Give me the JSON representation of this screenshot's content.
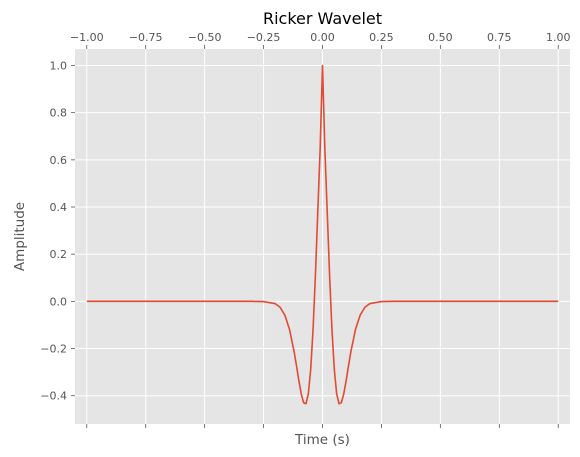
{
  "chart_data": {
    "type": "line",
    "title": "Ricker Wavelet",
    "xlabel": "Time (s)",
    "ylabel": "Amplitude",
    "xlim": [
      -1.05,
      1.05
    ],
    "ylim": [
      -0.52,
      1.07
    ],
    "x_ticks": [
      -1.0,
      -0.75,
      -0.5,
      -0.25,
      0.0,
      0.25,
      0.5,
      0.75,
      1.0
    ],
    "x_tick_labels": [
      "−1.00",
      "−0.75",
      "−0.50",
      "−0.25",
      "0.00",
      "0.25",
      "0.50",
      "0.75",
      "1.00"
    ],
    "x_tick_label_position": "top",
    "y_ticks": [
      -0.4,
      -0.2,
      0.0,
      0.2,
      0.4,
      0.6,
      0.8,
      1.0
    ],
    "y_tick_labels": [
      "−0.4",
      "−0.2",
      "0.0",
      "0.2",
      "0.4",
      "0.6",
      "0.8",
      "1.0"
    ],
    "grid": true,
    "style": "ggplot",
    "series": [
      {
        "color": "#E24A33",
        "x": [
          -1.0,
          -0.75,
          -0.5,
          -0.3,
          -0.25,
          -0.2,
          -0.18,
          -0.16,
          -0.14,
          -0.12,
          -0.11,
          -0.1,
          -0.09,
          -0.08,
          -0.07,
          -0.06,
          -0.05,
          -0.04,
          -0.03,
          -0.02,
          -0.01,
          0.0,
          0.01,
          0.02,
          0.03,
          0.04,
          0.05,
          0.06,
          0.07,
          0.08,
          0.09,
          0.1,
          0.11,
          0.12,
          0.14,
          0.16,
          0.18,
          0.2,
          0.25,
          0.3,
          0.5,
          0.75,
          1.0
        ],
        "y": [
          0.0,
          0.0,
          0.0,
          -0.0,
          -0.001,
          -0.01,
          -0.025,
          -0.058,
          -0.119,
          -0.215,
          -0.275,
          -0.338,
          -0.393,
          -0.43,
          -0.434,
          -0.391,
          -0.288,
          -0.118,
          0.112,
          0.381,
          0.646,
          1.0,
          0.646,
          0.381,
          0.112,
          -0.118,
          -0.288,
          -0.391,
          -0.434,
          -0.43,
          -0.393,
          -0.338,
          -0.275,
          -0.215,
          -0.119,
          -0.058,
          -0.025,
          -0.01,
          -0.001,
          -0.0,
          0.0,
          0.0,
          0.0
        ]
      }
    ]
  },
  "colors": {
    "plot_background": "#E5E5E5",
    "grid": "#FFFFFF",
    "tick_text": "#555555",
    "title_text": "#000000"
  }
}
